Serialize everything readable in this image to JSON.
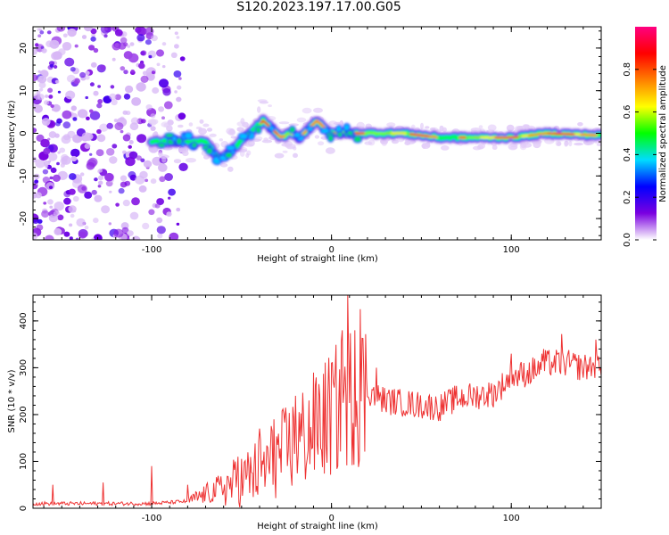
{
  "title": "S120.2023.197.17.00.G05",
  "chart_data": [
    {
      "type": "heatmap",
      "xlabel": "Height of straight line (km)",
      "ylabel": "Frequency (Hz)",
      "xlim": [
        -166,
        150
      ],
      "ylim": [
        -25,
        25
      ],
      "x_ticks": [
        -100,
        0,
        100
      ],
      "y_ticks": [
        -20,
        -10,
        0,
        10,
        20
      ],
      "colorbar": {
        "label": "Normalized spectral amplitude",
        "range": [
          0,
          1
        ],
        "ticks": [
          0.0,
          0.2,
          0.4,
          0.6,
          0.8
        ],
        "colormap": [
          "#ffffff",
          "#7a00e0",
          "#0000ff",
          "#00dcff",
          "#00ff00",
          "#ffff00",
          "#ff7f00",
          "#ff0000",
          "#ff0080"
        ]
      },
      "ridge": {
        "x": [
          -100,
          -90,
          -80,
          -70,
          -63,
          -58,
          -53,
          -48,
          -43,
          -38,
          -33,
          -28,
          -23,
          -18,
          -13,
          -8,
          -3,
          0,
          20,
          40,
          60,
          80,
          100,
          120,
          150
        ],
        "freq": [
          -2,
          -2,
          -2,
          -2,
          -6,
          -5,
          -3,
          -1,
          1,
          3,
          1,
          -1,
          0,
          -1,
          1,
          3,
          1,
          0,
          0,
          0,
          -1,
          -1,
          -1,
          0,
          -0.5
        ]
      },
      "noise_region_x": [
        -166,
        -88
      ]
    },
    {
      "type": "line",
      "xlabel": "Height of straight line (km)",
      "ylabel": "SNR (10 * v/v)",
      "xlim": [
        -166,
        150
      ],
      "ylim": [
        0,
        455
      ],
      "x_ticks": [
        -100,
        0,
        100
      ],
      "y_ticks": [
        0,
        100,
        200,
        300,
        400
      ],
      "line_color": "#ee3333",
      "baseline_points": [
        [
          -166,
          10
        ],
        [
          -100,
          10
        ],
        [
          -80,
          15
        ],
        [
          -70,
          30
        ],
        [
          -60,
          45
        ],
        [
          -50,
          60
        ],
        [
          -40,
          80
        ],
        [
          -30,
          110
        ],
        [
          -20,
          140
        ],
        [
          -10,
          170
        ],
        [
          0,
          200
        ],
        [
          10,
          240
        ],
        [
          20,
          250
        ],
        [
          30,
          230
        ],
        [
          40,
          225
        ],
        [
          50,
          220
        ],
        [
          60,
          215
        ],
        [
          70,
          235
        ],
        [
          80,
          240
        ],
        [
          90,
          245
        ],
        [
          100,
          280
        ],
        [
          110,
          290
        ],
        [
          120,
          310
        ],
        [
          130,
          310
        ],
        [
          140,
          300
        ],
        [
          150,
          310
        ]
      ],
      "spikes": [
        [
          -155,
          50
        ],
        [
          -127,
          55
        ],
        [
          -100,
          90
        ],
        [
          -80,
          50
        ],
        [
          -52,
          110
        ],
        [
          -40,
          170
        ],
        [
          -32,
          190
        ],
        [
          -20,
          240
        ],
        [
          -7,
          265
        ],
        [
          0,
          310
        ],
        [
          6,
          380
        ],
        [
          9,
          455
        ],
        [
          13,
          380
        ],
        [
          16,
          425
        ],
        [
          25,
          300
        ],
        [
          100,
          330
        ],
        [
          118,
          340
        ],
        [
          128,
          372
        ],
        [
          147,
          360
        ]
      ]
    }
  ]
}
